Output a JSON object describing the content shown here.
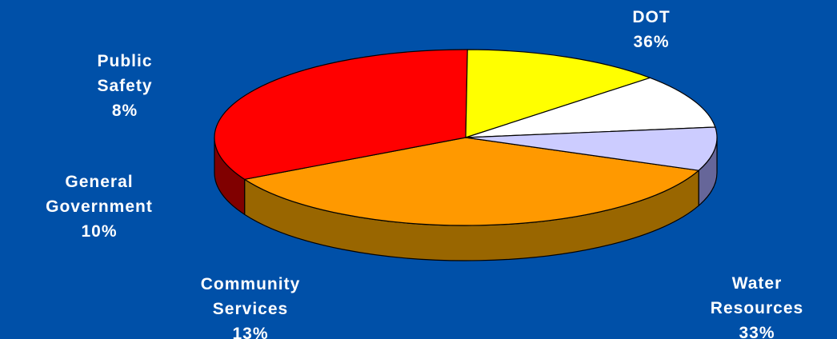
{
  "chart_data": {
    "type": "pie",
    "title": "",
    "three_d": true,
    "background_color": "#0050A8",
    "slices": [
      {
        "label_lines": [
          "DOT"
        ],
        "percent_text": "36%",
        "value": 36,
        "top_color": "#FF9900",
        "side_color": "#996600"
      },
      {
        "label_lines": [
          "Water",
          "Resources"
        ],
        "percent_text": "33%",
        "value": 33,
        "top_color": "#FF0000",
        "side_color": "#800000"
      },
      {
        "label_lines": [
          "Community",
          "Services"
        ],
        "percent_text": "13%",
        "value": 13,
        "top_color": "#FFFF00",
        "side_color": "#808000"
      },
      {
        "label_lines": [
          "General",
          "Government"
        ],
        "percent_text": "10%",
        "value": 10,
        "top_color": "#FFFFFF",
        "side_color": "#808080"
      },
      {
        "label_lines": [
          "Public",
          "Safety"
        ],
        "percent_text": "8%",
        "value": 8,
        "top_color": "#CCCCFF",
        "side_color": "#666699"
      }
    ]
  }
}
